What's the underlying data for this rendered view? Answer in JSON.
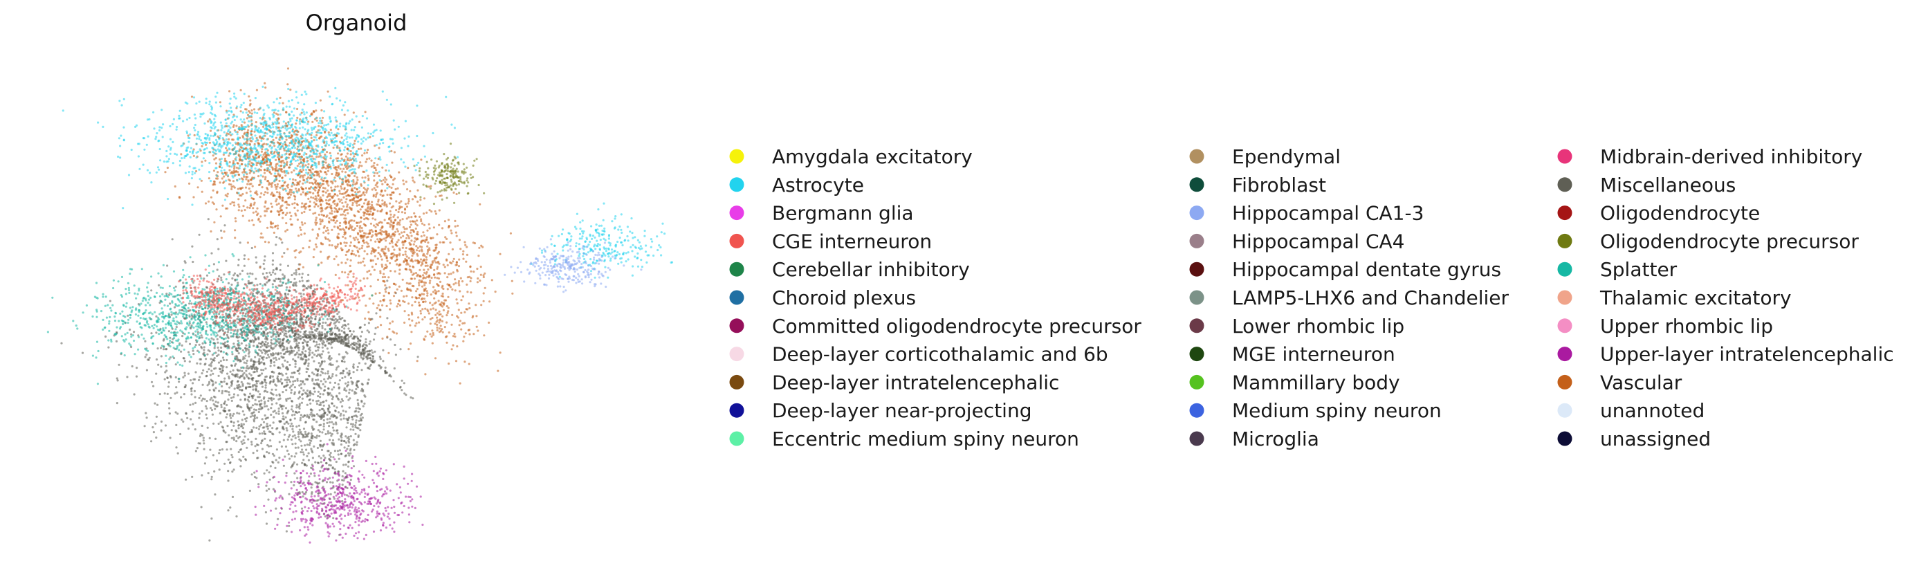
{
  "chart_data": {
    "type": "scatter",
    "title": "Organoid",
    "xlabel": "",
    "ylabel": "",
    "axes_visible": false,
    "grid": false,
    "legend_placement": "right",
    "legend_columns": 3,
    "legend": [
      {
        "label": "Amygdala excitatory",
        "color": "#f6f20a"
      },
      {
        "label": "Astrocyte",
        "color": "#22d3ee"
      },
      {
        "label": "Bergmann glia",
        "color": "#e83de8"
      },
      {
        "label": "CGE interneuron",
        "color": "#f0544f"
      },
      {
        "label": "Cerebellar inhibitory",
        "color": "#1e8449"
      },
      {
        "label": "Choroid plexus",
        "color": "#1f6fa3"
      },
      {
        "label": "Committed oligodendrocyte precursor",
        "color": "#950f5a"
      },
      {
        "label": "Deep-layer corticothalamic and 6b",
        "color": "#f7d9e5"
      },
      {
        "label": "Deep-layer intratelencephalic",
        "color": "#7a4a10"
      },
      {
        "label": "Deep-layer near-projecting",
        "color": "#111199"
      },
      {
        "label": "Eccentric medium spiny neuron",
        "color": "#5df0a6"
      },
      {
        "label": "Ependymal",
        "color": "#b19060"
      },
      {
        "label": "Fibroblast",
        "color": "#0f4d3b"
      },
      {
        "label": "Hippocampal CA1-3",
        "color": "#8da9f2"
      },
      {
        "label": "Hippocampal CA4",
        "color": "#9a7f8a"
      },
      {
        "label": "Hippocampal dentate gyrus",
        "color": "#5a1010"
      },
      {
        "label": "LAMP5-LHX6 and Chandelier",
        "color": "#7c9288"
      },
      {
        "label": "Lower rhombic lip",
        "color": "#6b3a48"
      },
      {
        "label": "MGE interneuron",
        "color": "#1e4710"
      },
      {
        "label": "Mammillary body",
        "color": "#55c21f"
      },
      {
        "label": "Medium spiny neuron",
        "color": "#3c63e0"
      },
      {
        "label": "Microglia",
        "color": "#4a3a4e"
      },
      {
        "label": "Midbrain-derived inhibitory",
        "color": "#e8347a"
      },
      {
        "label": "Miscellaneous",
        "color": "#5f5f55"
      },
      {
        "label": "Oligodendrocyte",
        "color": "#a51515"
      },
      {
        "label": "Oligodendrocyte precursor",
        "color": "#6f7a12"
      },
      {
        "label": "Splatter",
        "color": "#16b8a4"
      },
      {
        "label": "Thalamic excitatory",
        "color": "#f0a48a"
      },
      {
        "label": "Upper rhombic lip",
        "color": "#f48ec4"
      },
      {
        "label": "Upper-layer intratelencephalic",
        "color": "#aa1aa0"
      },
      {
        "label": "Vascular",
        "color": "#c4601a"
      },
      {
        "label": "unannoted",
        "color": "#dce9f8"
      },
      {
        "label": "unassigned",
        "color": "#0d0d36"
      }
    ],
    "clusters": [
      {
        "label": "Miscellaneous",
        "count": 3200
      },
      {
        "label": "Vascular",
        "count": 2600
      },
      {
        "label": "Astrocyte",
        "count": 1300
      },
      {
        "label": "Splatter",
        "count": 900
      },
      {
        "label": "CGE interneuron",
        "count": 700
      },
      {
        "label": "Upper-layer intratelencephalic",
        "count": 500
      },
      {
        "label": "Oligodendrocyte precursor",
        "count": 180
      },
      {
        "label": "Hippocampal CA1-3",
        "count": 250
      }
    ]
  }
}
